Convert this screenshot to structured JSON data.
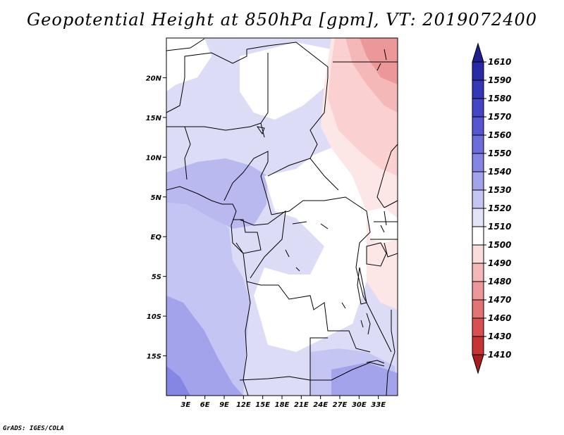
{
  "title": "Geopotential Height at 850hPa [gpm], VT: 2019072400",
  "credit": "GrADS: IGES/COLA",
  "map": {
    "lon_range": [
      0,
      36
    ],
    "lat_range": [
      -20,
      25
    ],
    "lat_ticks": [
      {
        "lat": 20,
        "label": "20N"
      },
      {
        "lat": 15,
        "label": "15N"
      },
      {
        "lat": 10,
        "label": "10N"
      },
      {
        "lat": 5,
        "label": "5N"
      },
      {
        "lat": 0,
        "label": "EQ"
      },
      {
        "lat": -5,
        "label": "5S"
      },
      {
        "lat": -10,
        "label": "10S"
      },
      {
        "lat": -15,
        "label": "15S"
      }
    ],
    "lon_ticks": [
      {
        "lon": 3,
        "label": "3E"
      },
      {
        "lon": 6,
        "label": "6E"
      },
      {
        "lon": 9,
        "label": "9E"
      },
      {
        "lon": 12,
        "label": "12E"
      },
      {
        "lon": 15,
        "label": "15E"
      },
      {
        "lon": 18,
        "label": "18E"
      },
      {
        "lon": 21,
        "label": "21E"
      },
      {
        "lon": 24,
        "label": "24E"
      },
      {
        "lon": 27,
        "label": "27E"
      },
      {
        "lon": 30,
        "label": "30E"
      },
      {
        "lon": 33,
        "label": "33E"
      }
    ]
  },
  "colorbar": {
    "labels": [
      "1610",
      "1590",
      "1580",
      "1570",
      "1560",
      "1550",
      "1540",
      "1530",
      "1520",
      "1510",
      "1500",
      "1490",
      "1480",
      "1470",
      "1460",
      "1430",
      "1410"
    ],
    "colors": [
      "#1f1f8f",
      "#2a2aa6",
      "#3636b9",
      "#4545c6",
      "#5656d0",
      "#6c6cdb",
      "#8585e3",
      "#a3a3ec",
      "#c5c5f3",
      "#e3e3fa",
      "#ffffff",
      "#fbdcdc",
      "#f4b8b8",
      "#ec9898",
      "#e27474",
      "#d85050",
      "#c83434",
      "#a81e1e"
    ]
  }
}
